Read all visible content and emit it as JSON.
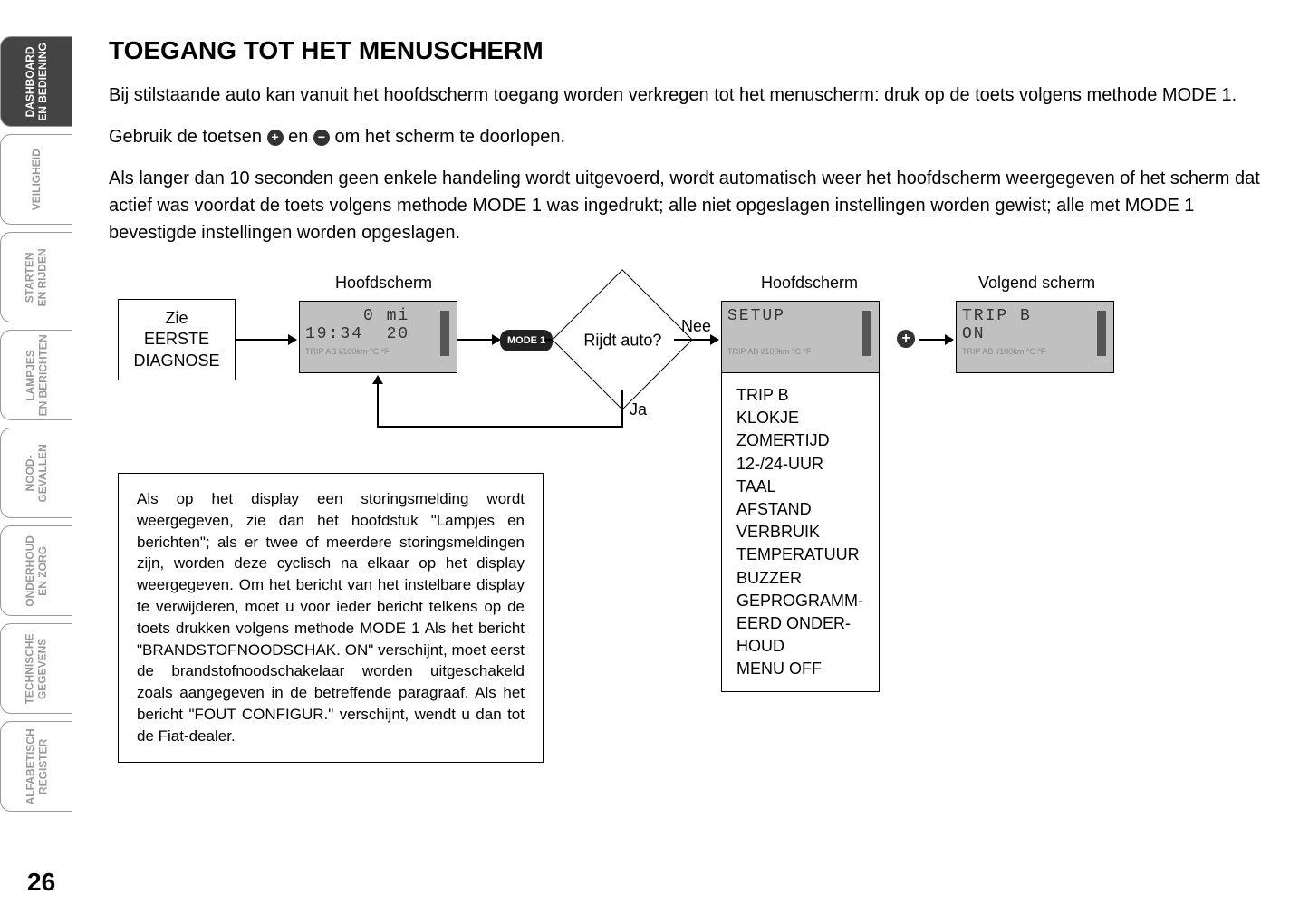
{
  "sidebar": {
    "tabs": [
      {
        "label": "DASHBOARD\nEN BEDIENING",
        "active": true
      },
      {
        "label": "VEILIGHEID",
        "active": false
      },
      {
        "label": "STARTEN\nEN RIJDEN",
        "active": false
      },
      {
        "label": "LAMPJES\nEN BERICHTEN",
        "active": false
      },
      {
        "label": "NOOD-\nGEVALLEN",
        "active": false
      },
      {
        "label": "ONDERHOUD\nEN ZORG",
        "active": false
      },
      {
        "label": "TECHNISCHE\nGEGEVENS",
        "active": false
      },
      {
        "label": "ALFABETISCH\nREGISTER",
        "active": false
      }
    ]
  },
  "title": "TOEGANG TOT HET MENUSCHERM",
  "paragraphs": {
    "p1": "Bij stilstaande auto kan vanuit het hoofdscherm toegang worden verkregen tot het menuscherm: druk op de toets volgens methode MODE 1.",
    "p2a": "Gebruik de toetsen ",
    "p2b": " en ",
    "p2c": " om het scherm te doorlopen.",
    "p3": "Als langer dan 10 seconden geen enkele handeling wordt uitgevoerd, wordt automatisch weer het hoofdscherm weergegeven of het scherm dat actief was voordat de toets volgens methode MODE 1 was ingedrukt; alle niet opgeslagen instellingen worden gewist; alle met MODE 1 bevestigde instellingen worden opgeslagen."
  },
  "flowchart": {
    "labels": {
      "hoofdscherm1": "Hoofdscherm",
      "hoofdscherm2": "Hoofdscherm",
      "volgend": "Volgend scherm"
    },
    "box1": {
      "line1": "Zie",
      "line2": "EERSTE",
      "line3": "DIAGNOSE"
    },
    "lcd1": {
      "line1": "     0 mi",
      "line2": "19:34  20",
      "bottom": "TRIP AB l/100km  °C °F"
    },
    "mode_label": "MODE 1",
    "decision": "Rijdt auto?",
    "yes": "Ja",
    "no": "Nee",
    "lcd2": {
      "line1": "SETUP",
      "line2": " ",
      "bottom": "TRIP AB l/100km  °C °F"
    },
    "lcd3": {
      "line1": "TRIP B",
      "line2": "ON",
      "bottom": "TRIP AB l/100km  °C °F"
    },
    "menu_items": [
      "TRIP B",
      "KLOKJE",
      "ZOMERTIJD",
      "12-/24-UUR",
      "TAAL",
      "AFSTAND",
      "VERBRUIK",
      "TEMPERATUUR",
      "BUZZER",
      "GEPROGRAMM-",
      "EERD ONDER-",
      "HOUD",
      "MENU OFF"
    ],
    "info_text": "Als op het display een storingsmelding wordt weergegeven, zie dan het hoofdstuk \"Lampjes en berichten\"; als er twee of meerdere storingsmeldingen zijn, worden deze cyclisch na elkaar op het display weergegeven. Om het bericht van het instelbare display te verwijderen, moet u voor ieder bericht telkens op de toets drukken volgens methode MODE 1 Als het bericht \"BRANDSTOFNOODSCHAK. ON\" verschijnt, moet eerst de brandstofnoodschakelaar worden uitgeschakeld zoals aangegeven in de betreffende paragraaf. Als het bericht \"FOUT CONFIGUR.\" verschijnt, wendt u dan tot de Fiat-dealer."
  },
  "page_number": "26"
}
